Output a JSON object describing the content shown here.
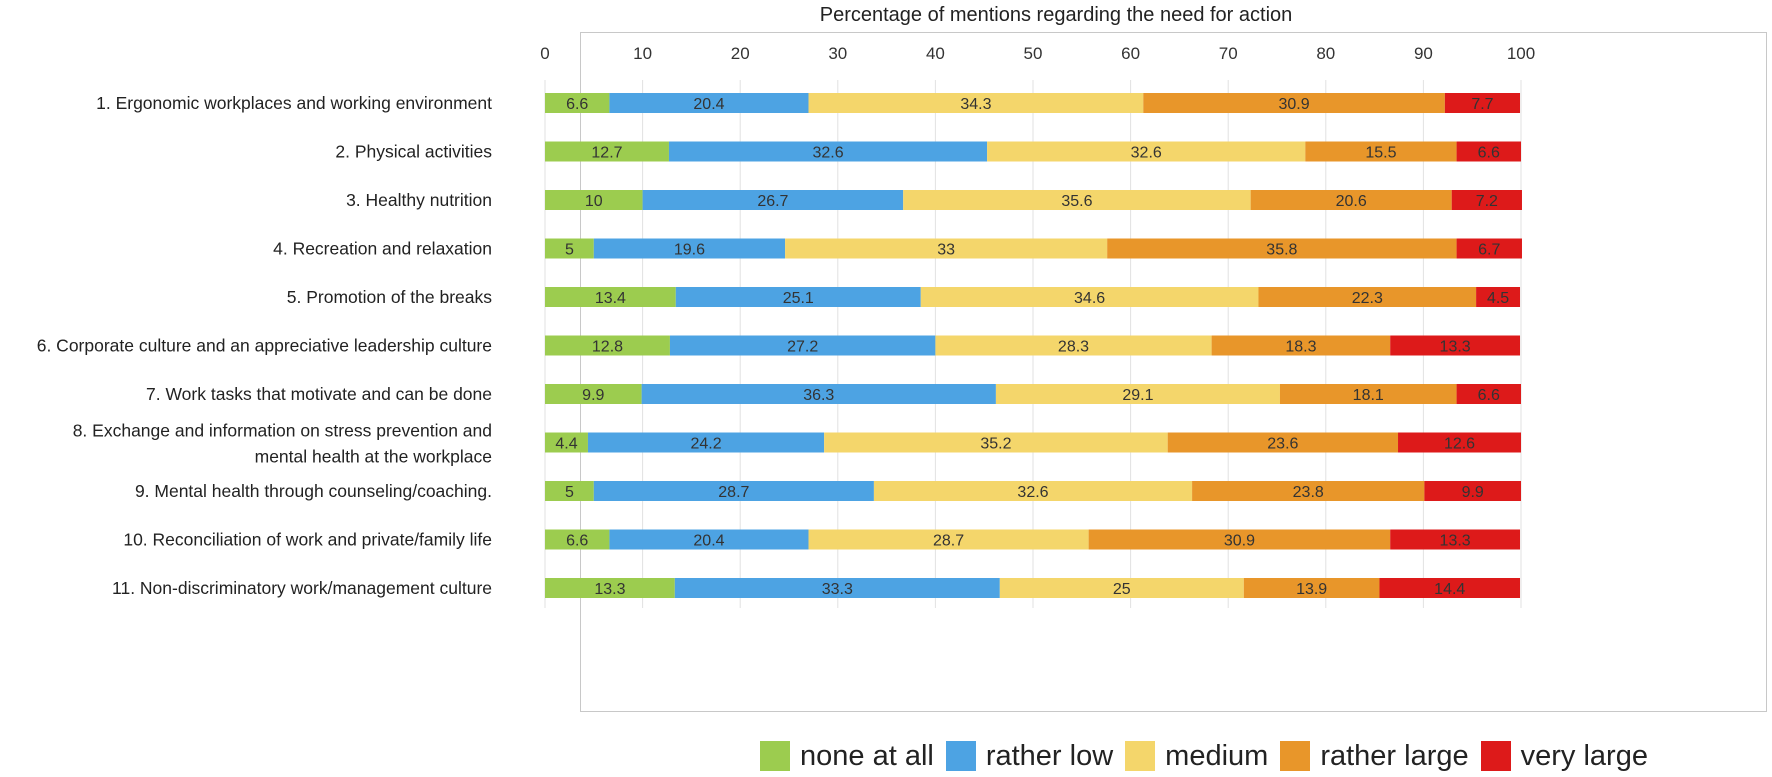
{
  "chart_data": {
    "type": "bar",
    "orientation": "horizontal",
    "stacked": true,
    "title": "Percentage of mentions regarding the need for action",
    "xlim": [
      0,
      100
    ],
    "xticks": [
      "0",
      "10",
      "20",
      "30",
      "40",
      "50",
      "60",
      "70",
      "80",
      "90",
      "100"
    ],
    "categories": [
      [
        "1. Ergonomic workplaces and working environment"
      ],
      [
        "2. Physical activities"
      ],
      [
        "3. Healthy nutrition"
      ],
      [
        "4. Recreation and relaxation"
      ],
      [
        "5. Promotion of the breaks"
      ],
      [
        "6. Corporate culture and an appreciative leadership culture"
      ],
      [
        "7. Work tasks that motivate and can be done"
      ],
      [
        "8. Exchange and information on stress prevention and",
        "mental health at the workplace"
      ],
      [
        "9. Mental health through counseling/coaching."
      ],
      [
        "10. Reconciliation of work and private/family life"
      ],
      [
        "11. Non-discriminatory work/management culture"
      ]
    ],
    "series": [
      {
        "name": "none at all",
        "color": "#9ccc4f",
        "values": [
          6.6,
          12.7,
          10,
          5,
          13.4,
          12.8,
          9.9,
          4.4,
          5,
          6.6,
          13.3
        ]
      },
      {
        "name": "rather low",
        "color": "#4da3e3",
        "values": [
          20.4,
          32.6,
          26.7,
          19.6,
          25.1,
          27.2,
          36.3,
          24.2,
          28.7,
          20.4,
          33.3
        ]
      },
      {
        "name": "medium",
        "color": "#f4d66b",
        "values": [
          34.3,
          32.6,
          35.6,
          33,
          34.6,
          28.3,
          29.1,
          35.2,
          32.6,
          28.7,
          25
        ]
      },
      {
        "name": "rather large",
        "color": "#e8962a",
        "values": [
          30.9,
          15.5,
          20.6,
          35.8,
          22.3,
          18.3,
          18.1,
          23.6,
          23.8,
          30.9,
          13.9
        ]
      },
      {
        "name": "very large",
        "color": "#dd1a1a",
        "values": [
          7.7,
          6.6,
          7.2,
          6.7,
          4.5,
          13.3,
          6.6,
          12.6,
          9.9,
          13.3,
          14.4
        ]
      }
    ],
    "legend_position": "bottom"
  }
}
